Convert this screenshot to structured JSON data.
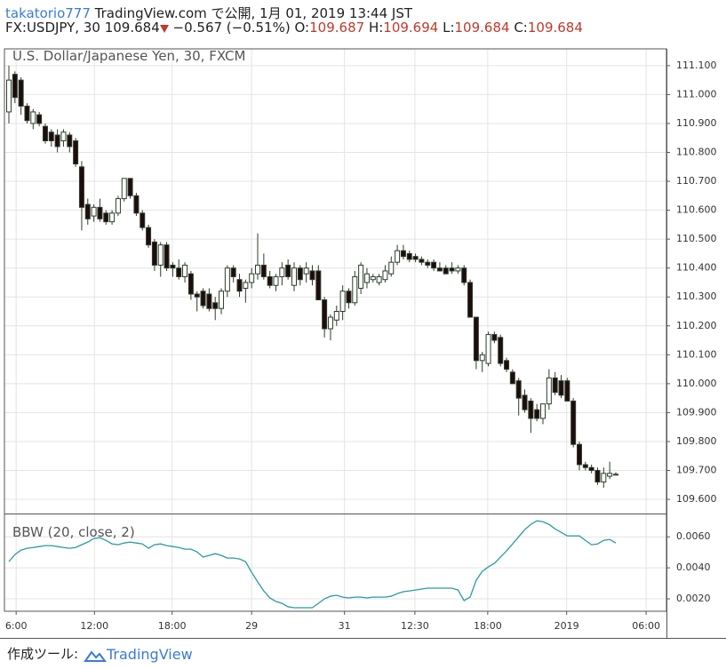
{
  "header": {
    "user": "takatorio777",
    "published": "TradingView.com で公開, 1月 01, 2019 13:44 JST",
    "symbol": "FX:USDJPY, 30",
    "change": "−0.567 (−0.51%)",
    "ohlc_labels": [
      "O:",
      "H:",
      "L:",
      "C:"
    ]
  },
  "chart_data": [
    {
      "type": "candlestick",
      "title": "U.S. Dollar/Japanese Yen, 30, FXCM",
      "up_color": "#ffffff",
      "down_color": "#1e0c0c",
      "border_color": "#2c3d2c",
      "grid": true,
      "xlim": [
        -0.73,
        108.35
      ],
      "ylim": [
        109.551,
        111.158
      ],
      "yticks": [
        {
          "value": 109.6,
          "label": "109.600"
        },
        {
          "value": 109.7,
          "label": "109.700"
        },
        {
          "value": 109.8,
          "label": "109.800"
        },
        {
          "value": 109.9,
          "label": "109.900"
        },
        {
          "value": 110.0,
          "label": "110.000"
        },
        {
          "value": 110.1,
          "label": "110.100"
        },
        {
          "value": 110.2,
          "label": "110.200"
        },
        {
          "value": 110.3,
          "label": "110.300"
        },
        {
          "value": 110.4,
          "label": "110.400"
        },
        {
          "value": 110.5,
          "label": "110.500"
        },
        {
          "value": 110.6,
          "label": "110.600"
        },
        {
          "value": 110.7,
          "label": "110.700"
        },
        {
          "value": 110.8,
          "label": "110.800"
        },
        {
          "value": 110.9,
          "label": "110.900"
        },
        {
          "value": 111.0,
          "label": "111.000"
        },
        {
          "value": 111.1,
          "label": "111.100"
        }
      ],
      "ohlc": [
        [
          110.94,
          111.1,
          110.9,
          111.05
        ],
        [
          111.07,
          111.08,
          110.97,
          110.99
        ],
        [
          111.05,
          111.06,
          110.93,
          110.96
        ],
        [
          110.96,
          110.97,
          110.9,
          110.91
        ],
        [
          110.9,
          110.95,
          110.88,
          110.94
        ],
        [
          110.93,
          110.94,
          110.89,
          110.9
        ],
        [
          110.89,
          110.9,
          110.83,
          110.84
        ],
        [
          110.87,
          110.88,
          110.82,
          110.84
        ],
        [
          110.86,
          110.88,
          110.8,
          110.82
        ],
        [
          110.84,
          110.88,
          110.82,
          110.87
        ],
        [
          110.86,
          110.87,
          110.8,
          110.82
        ],
        [
          110.84,
          110.85,
          110.75,
          110.76
        ],
        [
          110.75,
          110.77,
          110.53,
          110.61
        ],
        [
          110.62,
          110.64,
          110.55,
          110.57
        ],
        [
          110.58,
          110.62,
          110.56,
          110.61
        ],
        [
          110.61,
          110.64,
          110.56,
          110.57
        ],
        [
          110.59,
          110.6,
          110.55,
          110.56
        ],
        [
          110.56,
          110.6,
          110.55,
          110.59
        ],
        [
          110.59,
          110.65,
          110.58,
          110.64
        ],
        [
          110.64,
          110.71,
          110.63,
          110.71
        ],
        [
          110.71,
          110.71,
          110.64,
          110.65
        ],
        [
          110.65,
          110.66,
          110.58,
          110.59
        ],
        [
          110.59,
          110.6,
          110.53,
          110.54
        ],
        [
          110.54,
          110.55,
          110.47,
          110.48
        ],
        [
          110.49,
          110.5,
          110.39,
          110.41
        ],
        [
          110.41,
          110.49,
          110.37,
          110.48
        ],
        [
          110.48,
          110.49,
          110.39,
          110.4
        ],
        [
          110.41,
          110.42,
          110.37,
          110.4
        ],
        [
          110.4,
          110.43,
          110.36,
          110.37
        ],
        [
          110.37,
          110.42,
          110.35,
          110.41
        ],
        [
          110.38,
          110.39,
          110.29,
          110.31
        ],
        [
          110.31,
          110.32,
          110.25,
          110.3
        ],
        [
          110.32,
          110.33,
          110.26,
          110.27
        ],
        [
          110.31,
          110.33,
          110.25,
          110.26
        ],
        [
          110.28,
          110.3,
          110.22,
          110.26
        ],
        [
          110.26,
          110.33,
          110.24,
          110.32
        ],
        [
          110.32,
          110.41,
          110.3,
          110.4
        ],
        [
          110.4,
          110.41,
          110.35,
          110.37
        ],
        [
          110.36,
          110.38,
          110.3,
          110.32
        ],
        [
          110.33,
          110.36,
          110.28,
          110.35
        ],
        [
          110.35,
          110.4,
          110.33,
          110.38
        ],
        [
          110.38,
          110.52,
          110.36,
          110.41
        ],
        [
          110.41,
          110.45,
          110.36,
          110.37
        ],
        [
          110.37,
          110.39,
          110.33,
          110.34
        ],
        [
          110.34,
          110.38,
          110.32,
          110.37
        ],
        [
          110.37,
          110.42,
          110.34,
          110.4
        ],
        [
          110.41,
          110.43,
          110.36,
          110.37
        ],
        [
          110.34,
          110.42,
          110.32,
          110.4
        ],
        [
          110.4,
          110.41,
          110.34,
          110.36
        ],
        [
          110.38,
          110.42,
          110.35,
          110.4
        ],
        [
          110.39,
          110.41,
          110.34,
          110.36
        ],
        [
          110.39,
          110.41,
          110.29,
          110.29
        ],
        [
          110.29,
          110.3,
          110.16,
          110.19
        ],
        [
          110.19,
          110.24,
          110.15,
          110.23
        ],
        [
          110.22,
          110.27,
          110.2,
          110.25
        ],
        [
          110.25,
          110.34,
          110.22,
          110.32
        ],
        [
          110.32,
          110.33,
          110.26,
          110.28
        ],
        [
          110.28,
          110.39,
          110.27,
          110.37
        ],
        [
          110.33,
          110.42,
          110.31,
          110.41
        ],
        [
          110.35,
          110.4,
          110.33,
          110.38
        ],
        [
          110.36,
          110.38,
          110.35,
          110.37
        ],
        [
          110.35,
          110.38,
          110.34,
          110.37
        ],
        [
          110.36,
          110.41,
          110.35,
          110.39
        ],
        [
          110.38,
          110.44,
          110.37,
          110.42
        ],
        [
          110.42,
          110.48,
          110.41,
          110.46
        ],
        [
          110.46,
          110.48,
          110.43,
          110.44
        ],
        [
          110.45,
          110.46,
          110.42,
          110.43
        ],
        [
          110.44,
          110.45,
          110.42,
          110.43
        ],
        [
          110.43,
          110.44,
          110.41,
          110.42
        ],
        [
          110.42,
          110.43,
          110.4,
          110.41
        ],
        [
          110.42,
          110.43,
          110.39,
          110.4
        ],
        [
          110.4,
          110.42,
          110.39,
          110.39
        ],
        [
          110.4,
          110.41,
          110.38,
          110.38
        ],
        [
          110.4,
          110.42,
          110.38,
          110.39
        ],
        [
          110.39,
          110.41,
          110.38,
          110.4
        ],
        [
          110.4,
          110.41,
          110.34,
          110.35
        ],
        [
          110.35,
          110.36,
          110.23,
          110.23
        ],
        [
          110.23,
          110.23,
          110.05,
          110.08
        ],
        [
          110.08,
          110.11,
          110.04,
          110.1
        ],
        [
          110.07,
          110.18,
          110.06,
          110.17
        ],
        [
          110.17,
          110.18,
          110.14,
          110.15
        ],
        [
          110.16,
          110.17,
          110.06,
          110.07
        ],
        [
          110.08,
          110.09,
          110.04,
          110.05
        ],
        [
          110.04,
          110.05,
          110.0,
          110.0
        ],
        [
          110.01,
          110.02,
          109.89,
          109.95
        ],
        [
          109.96,
          109.98,
          109.9,
          109.91
        ],
        [
          109.94,
          109.95,
          109.83,
          109.88
        ],
        [
          109.91,
          109.93,
          109.87,
          109.88
        ],
        [
          109.88,
          109.93,
          109.86,
          109.93
        ],
        [
          109.93,
          110.05,
          109.91,
          110.02
        ],
        [
          110.02,
          110.04,
          109.96,
          109.97
        ],
        [
          110.01,
          110.03,
          109.95,
          109.96
        ],
        [
          110.01,
          110.02,
          109.94,
          109.94
        ],
        [
          109.94,
          109.95,
          109.78,
          109.79
        ],
        [
          109.79,
          109.8,
          109.7,
          109.72
        ],
        [
          109.72,
          109.73,
          109.7,
          109.71
        ],
        [
          109.71,
          109.72,
          109.69,
          109.7
        ],
        [
          109.7,
          109.71,
          109.65,
          109.66
        ],
        [
          109.66,
          109.71,
          109.64,
          109.69
        ],
        [
          109.68,
          109.73,
          109.67,
          109.69
        ],
        [
          109.687,
          109.694,
          109.684,
          109.684
        ]
      ]
    },
    {
      "type": "line",
      "title": "BBW (20, close, 2)",
      "color": "#2a9ba3",
      "grid": true,
      "xlim": [
        -0.73,
        108.35
      ],
      "ylim": [
        0.0012,
        0.0075
      ],
      "yticks": [
        {
          "value": 0.002,
          "label": "0.0020"
        },
        {
          "value": 0.004,
          "label": "0.0040"
        },
        {
          "value": 0.006,
          "label": "0.0060"
        }
      ],
      "xticks": [
        {
          "value": 1.2,
          "label": "6:00"
        },
        {
          "value": 14.1,
          "label": "12:00"
        },
        {
          "value": 26.9,
          "label": "18:00"
        },
        {
          "value": 40.0,
          "label": "29"
        },
        {
          "value": 55.3,
          "label": "31"
        },
        {
          "value": 66.9,
          "label": "12:30"
        },
        {
          "value": 78.9,
          "label": "18:00"
        },
        {
          "value": 91.9,
          "label": "2019"
        },
        {
          "value": 105.0,
          "label": "06:00"
        }
      ],
      "values": [
        0.0044,
        0.00486,
        0.00514,
        0.00526,
        0.00531,
        0.00537,
        0.00543,
        0.00543,
        0.00537,
        0.00531,
        0.00526,
        0.00531,
        0.00549,
        0.00566,
        0.00589,
        0.00594,
        0.00577,
        0.00554,
        0.00549,
        0.0056,
        0.00566,
        0.0056,
        0.00554,
        0.00526,
        0.00549,
        0.00554,
        0.00543,
        0.00537,
        0.00531,
        0.0052,
        0.0052,
        0.00503,
        0.00469,
        0.0048,
        0.00491,
        0.0048,
        0.00463,
        0.00463,
        0.00457,
        0.0044,
        0.00371,
        0.00309,
        0.00251,
        0.00206,
        0.00183,
        0.00171,
        0.00149,
        0.00143,
        0.00143,
        0.00143,
        0.00143,
        0.00171,
        0.002,
        0.00217,
        0.00223,
        0.00211,
        0.00206,
        0.00211,
        0.00211,
        0.00206,
        0.00211,
        0.00211,
        0.00211,
        0.00217,
        0.00234,
        0.00246,
        0.00251,
        0.00257,
        0.00263,
        0.00269,
        0.00269,
        0.00269,
        0.00269,
        0.00269,
        0.00257,
        0.00189,
        0.00211,
        0.0032,
        0.00377,
        0.00406,
        0.00429,
        0.00469,
        0.00509,
        0.00554,
        0.006,
        0.00646,
        0.0068,
        0.00703,
        0.00697,
        0.0068,
        0.00651,
        0.00629,
        0.00606,
        0.00606,
        0.00606,
        0.00577,
        0.00549,
        0.00554,
        0.00577,
        0.00583,
        0.0056
      ]
    }
  ],
  "footer": {
    "label": "作成ツール:",
    "brand": "TradingView"
  }
}
